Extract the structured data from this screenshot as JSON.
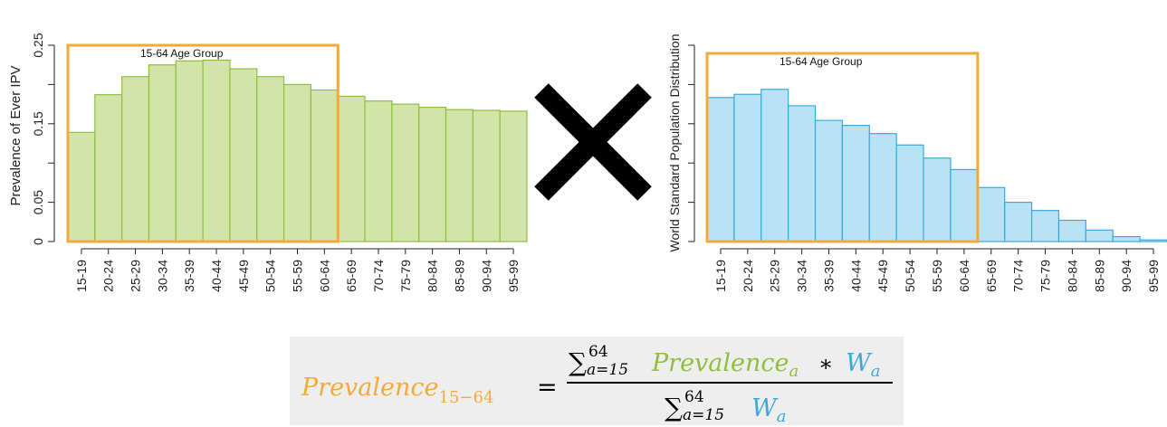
{
  "colors": {
    "prevalence_fill": "#d3e4a8",
    "prevalence_stroke": "#8fbf3f",
    "population_fill": "#b7e3f5",
    "population_stroke": "#3aa9df",
    "highlight_box": "#f5a93b",
    "multiply_sign": "#000000",
    "formula_orange": "#f5a93b",
    "formula_green": "#8fbf3f",
    "formula_blue": "#3aa9df",
    "formula_black": "#000000"
  },
  "multiply_symbol": "×",
  "chart_data": [
    {
      "type": "bar",
      "ylabel": "Prevalence of Ever IPV",
      "ylim": [
        0,
        0.25
      ],
      "yticks": [
        "0",
        "0.05",
        "0.15",
        "0.25"
      ],
      "yticks_values": [
        0,
        0.05,
        0.1,
        0.15,
        0.2,
        0.25
      ],
      "categories": [
        "15-19",
        "20-24",
        "25-29",
        "30-34",
        "35-39",
        "40-44",
        "45-49",
        "50-54",
        "55-59",
        "60-64",
        "65-69",
        "70-74",
        "75-79",
        "80-84",
        "85-89",
        "90-94",
        "95-99"
      ],
      "values": [
        0.139,
        0.187,
        0.21,
        0.225,
        0.23,
        0.231,
        0.22,
        0.21,
        0.2,
        0.193,
        0.185,
        0.179,
        0.175,
        0.171,
        0.168,
        0.167,
        0.166
      ],
      "highlight": {
        "label": "15-64 Age Group",
        "from": "15-19",
        "to": "60-64"
      },
      "grid": false
    },
    {
      "type": "bar",
      "ylabel": "World Standard Population Distribution",
      "yticks": [],
      "categories": [
        "15-19",
        "20-24",
        "25-29",
        "30-34",
        "35-39",
        "40-44",
        "45-49",
        "50-54",
        "55-59",
        "60-64",
        "65-69",
        "70-74",
        "75-79",
        "80-84",
        "85-89",
        "90-94",
        "95-99"
      ],
      "values": [
        0.88,
        0.9,
        0.93,
        0.83,
        0.74,
        0.71,
        0.66,
        0.59,
        0.51,
        0.44,
        0.33,
        0.24,
        0.19,
        0.13,
        0.07,
        0.03,
        0.01
      ],
      "highlight": {
        "label": "15-64 Age Group",
        "from": "15-19",
        "to": "60-64"
      },
      "grid": false
    }
  ],
  "formula": {
    "lhs": {
      "base": "Prevalence",
      "sub": "15−64"
    },
    "equals": "=",
    "numerator": {
      "sum": "∑",
      "sub": "a=15",
      "sup": "64",
      "term1_base": "Prevalence",
      "term1_sub": "a",
      "times": "∗",
      "term2_base": "W",
      "term2_sub": "a"
    },
    "denominator": {
      "sum": "∑",
      "sub": "a=15",
      "sup": "64",
      "term_base": "W",
      "term_sub": "a"
    }
  }
}
